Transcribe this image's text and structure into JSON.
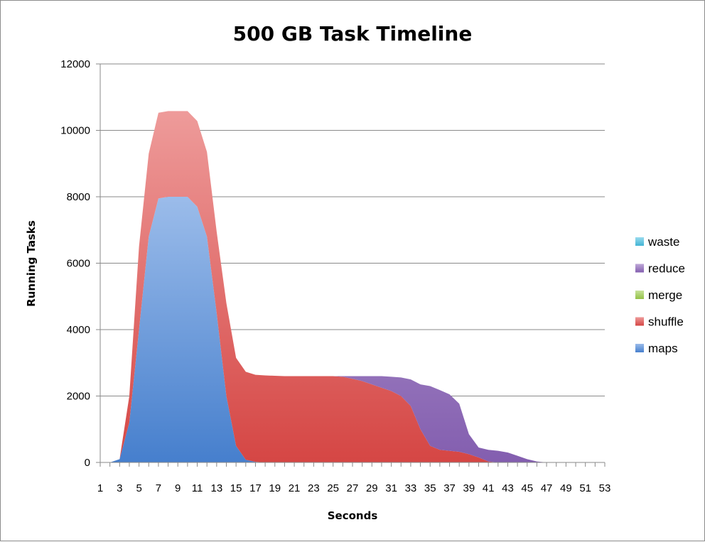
{
  "chart_data": {
    "type": "area",
    "stacked": true,
    "title": "500 GB Task Timeline",
    "xlabel": "Seconds",
    "ylabel": "Running Tasks",
    "ylim": [
      0,
      12000
    ],
    "yticks": [
      0,
      2000,
      4000,
      6000,
      8000,
      10000,
      12000
    ],
    "x": [
      1,
      2,
      3,
      4,
      5,
      6,
      7,
      8,
      9,
      10,
      11,
      12,
      13,
      14,
      15,
      16,
      17,
      18,
      19,
      20,
      21,
      22,
      23,
      24,
      25,
      26,
      27,
      28,
      29,
      30,
      31,
      32,
      33,
      34,
      35,
      36,
      37,
      38,
      39,
      40,
      41,
      42,
      43,
      44,
      45,
      46,
      47,
      48,
      49,
      50,
      51,
      52,
      53
    ],
    "xtick_labels": [
      "1",
      "3",
      "5",
      "7",
      "9",
      "11",
      "13",
      "15",
      "17",
      "19",
      "21",
      "23",
      "25",
      "27",
      "29",
      "31",
      "33",
      "35",
      "37",
      "39",
      "41",
      "43",
      "45",
      "47",
      "49",
      "51",
      "53"
    ],
    "grid": "horizontal",
    "legend_position": "right",
    "series": [
      {
        "name": "maps",
        "color": "#4a86d8",
        "values": [
          0,
          0,
          100,
          1200,
          4000,
          6800,
          7950,
          8000,
          8000,
          8000,
          7700,
          6800,
          4500,
          2000,
          500,
          80,
          20,
          0,
          0,
          0,
          0,
          0,
          0,
          0,
          0,
          0,
          0,
          0,
          0,
          0,
          0,
          0,
          0,
          0,
          0,
          0,
          0,
          0,
          0,
          0,
          0,
          0,
          0,
          0,
          0,
          0,
          0,
          0,
          0,
          0,
          0,
          0,
          0
        ]
      },
      {
        "name": "shuffle",
        "color": "#e04a48",
        "values": [
          0,
          0,
          0,
          800,
          2500,
          2500,
          2580,
          2580,
          2580,
          2580,
          2580,
          2550,
          2450,
          2800,
          2650,
          2650,
          2620,
          2620,
          2610,
          2600,
          2600,
          2600,
          2600,
          2600,
          2600,
          2580,
          2520,
          2450,
          2350,
          2250,
          2150,
          2000,
          1700,
          1000,
          500,
          380,
          350,
          320,
          250,
          150,
          30,
          0,
          0,
          0,
          0,
          0,
          0,
          0,
          0,
          0,
          0,
          0,
          0
        ]
      },
      {
        "name": "merge",
        "color": "#9bcb4a",
        "values": [
          0,
          0,
          0,
          0,
          0,
          0,
          0,
          0,
          0,
          0,
          0,
          0,
          0,
          0,
          0,
          0,
          0,
          0,
          0,
          0,
          0,
          0,
          0,
          0,
          0,
          0,
          0,
          0,
          0,
          0,
          0,
          0,
          0,
          0,
          0,
          0,
          0,
          0,
          0,
          0,
          0,
          0,
          0,
          0,
          0,
          0,
          0,
          0,
          0,
          0,
          0,
          0,
          0
        ]
      },
      {
        "name": "reduce",
        "color": "#8a63b8",
        "values": [
          0,
          0,
          0,
          0,
          0,
          0,
          0,
          0,
          0,
          0,
          0,
          0,
          0,
          0,
          0,
          0,
          0,
          0,
          0,
          0,
          0,
          0,
          0,
          0,
          0,
          20,
          80,
          150,
          250,
          350,
          430,
          560,
          800,
          1350,
          1800,
          1800,
          1700,
          1450,
          600,
          300,
          350,
          350,
          300,
          200,
          100,
          30,
          0,
          0,
          0,
          0,
          0,
          0,
          0
        ]
      },
      {
        "name": "waste",
        "color": "#45bde0",
        "values": [
          0,
          0,
          0,
          0,
          0,
          0,
          0,
          0,
          0,
          0,
          0,
          0,
          0,
          0,
          0,
          0,
          0,
          0,
          0,
          0,
          0,
          0,
          0,
          0,
          0,
          0,
          0,
          0,
          0,
          0,
          0,
          0,
          0,
          0,
          0,
          0,
          0,
          0,
          0,
          0,
          0,
          0,
          0,
          0,
          0,
          0,
          0,
          0,
          0,
          0,
          0,
          0,
          0
        ]
      }
    ],
    "legend_order": [
      "waste",
      "reduce",
      "merge",
      "shuffle",
      "maps"
    ]
  }
}
